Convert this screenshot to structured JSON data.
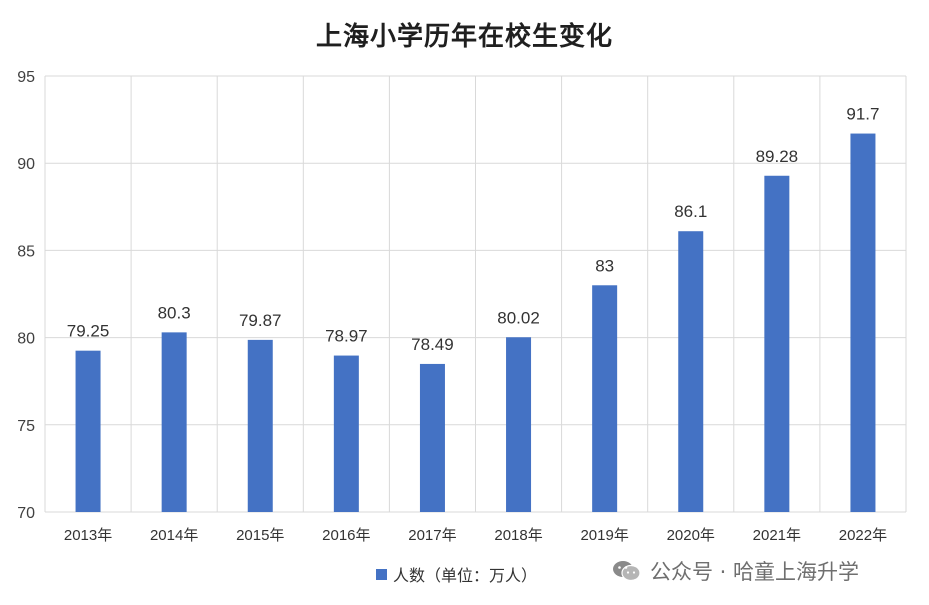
{
  "chart_data": {
    "type": "bar",
    "title": "上海小学历年在校生变化",
    "categories": [
      "2013年",
      "2014年",
      "2015年",
      "2016年",
      "2017年",
      "2018年",
      "2019年",
      "2020年",
      "2021年",
      "2022年"
    ],
    "series": [
      {
        "name": "人数（单位：万人）",
        "values": [
          79.25,
          80.3,
          79.87,
          78.97,
          78.49,
          80.02,
          83,
          86.1,
          89.28,
          91.7
        ],
        "color": "#4472C4"
      }
    ],
    "data_labels": [
      "79.25",
      "80.3",
      "79.87",
      "78.97",
      "78.49",
      "80.02",
      "83",
      "86.1",
      "89.28",
      "91.7"
    ],
    "ylim": [
      70,
      95
    ],
    "yticks": [
      70,
      75,
      80,
      85,
      90,
      95
    ],
    "ytick_labels": [
      "70",
      "75",
      "80",
      "85",
      "90",
      "95"
    ],
    "grid": true,
    "legend_position": "bottom"
  },
  "watermark": {
    "icon": "wechat-icon",
    "text": "公众号 · 哈童上海升学"
  }
}
